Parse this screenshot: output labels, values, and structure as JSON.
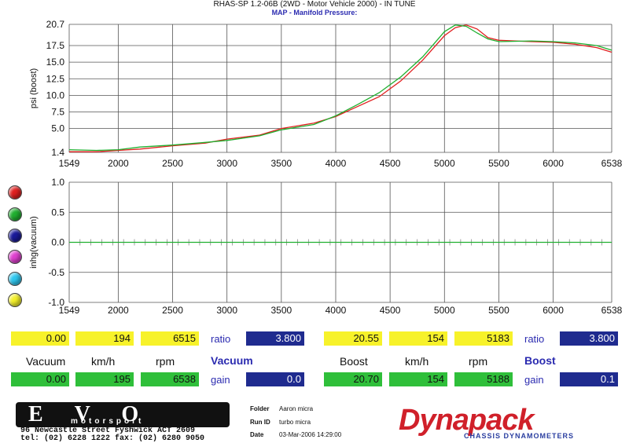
{
  "header": {
    "title": "RHAS-SP 1.2-06B  (2WD - Motor Vehicle 2000) - IN TUNE",
    "subtitle": "MAP - Manifold Pressure:"
  },
  "colors": {
    "run1": "#e02020",
    "run2": "#20b030",
    "indicator_dots": [
      "#e02020",
      "#20b030",
      "#1a1a9a",
      "#e040d0",
      "#30c8f0",
      "#f4f02a"
    ]
  },
  "chart_data": [
    {
      "type": "line",
      "ylabel": "psi (boost)",
      "xlim": [
        1549,
        6538
      ],
      "ylim": [
        1.4,
        20.7
      ],
      "x_ticks": [
        "1549",
        "2000",
        "2500",
        "3000",
        "3500",
        "4000",
        "4500",
        "5000",
        "5500",
        "6000",
        "6538"
      ],
      "y_ticks": [
        "20.7",
        "17.5",
        "15.0",
        "12.5",
        "10.0",
        "7.5",
        "5.0",
        "1.4"
      ],
      "grid": true,
      "series": [
        {
          "color": "#e02020",
          "x": [
            1549,
            1800,
            2000,
            2200,
            2500,
            2800,
            3000,
            3300,
            3500,
            3800,
            4000,
            4200,
            4400,
            4600,
            4800,
            5000,
            5100,
            5200,
            5300,
            5400,
            5500,
            5800,
            6000,
            6200,
            6400,
            6538
          ],
          "y": [
            1.5,
            1.5,
            1.7,
            1.9,
            2.4,
            2.8,
            3.4,
            4.0,
            5.0,
            5.8,
            6.8,
            8.3,
            9.8,
            12.2,
            15.3,
            19.0,
            20.2,
            20.6,
            20.0,
            18.7,
            18.3,
            18.1,
            18.0,
            17.7,
            17.2,
            16.5
          ]
        },
        {
          "color": "#20b030",
          "x": [
            1549,
            1800,
            2000,
            2200,
            2500,
            2800,
            3000,
            3300,
            3500,
            3800,
            4000,
            4200,
            4400,
            4600,
            4800,
            5000,
            5100,
            5200,
            5300,
            5400,
            5500,
            5800,
            6000,
            6200,
            6400,
            6538
          ],
          "y": [
            1.8,
            1.7,
            1.8,
            2.2,
            2.5,
            2.9,
            3.2,
            3.9,
            4.8,
            5.6,
            6.9,
            8.6,
            10.4,
            12.8,
            15.8,
            19.6,
            20.6,
            20.4,
            19.4,
            18.5,
            18.1,
            18.2,
            18.1,
            17.9,
            17.5,
            16.8
          ]
        }
      ]
    },
    {
      "type": "line",
      "ylabel": "inhg(vacuum)",
      "xlim": [
        1549,
        6538
      ],
      "ylim": [
        -1.0,
        1.0
      ],
      "x_ticks": [
        "1549",
        "2000",
        "2500",
        "3000",
        "3500",
        "4000",
        "4500",
        "5000",
        "5500",
        "6000",
        "6538"
      ],
      "y_ticks": [
        "1.0",
        "0.5",
        "0.0",
        "-0.5",
        "-1.0"
      ],
      "grid": true,
      "series": [
        {
          "color": "#20b030",
          "x": [
            1549,
            6538
          ],
          "y": [
            0.0,
            0.0
          ]
        }
      ]
    }
  ],
  "readouts": {
    "vacuum_group": {
      "heading": "Vacuum",
      "top_values": [
        "0.00",
        "194",
        "6515"
      ],
      "labels": [
        "Vacuum",
        "km/h",
        "rpm"
      ],
      "bottom_values": [
        "0.00",
        "195",
        "6538"
      ],
      "ratio_label": "ratio",
      "ratio_value": "3.800",
      "gain_label": "gain",
      "gain_value": "0.0"
    },
    "boost_group": {
      "heading": "Boost",
      "top_values": [
        "20.55",
        "154",
        "5183"
      ],
      "labels": [
        "Boost",
        "km/h",
        "rpm"
      ],
      "bottom_values": [
        "20.70",
        "154",
        "5188"
      ],
      "ratio_label": "ratio",
      "ratio_value": "3.800",
      "gain_label": "gain",
      "gain_value": "0.1"
    }
  },
  "footer": {
    "logo_text": "EVO",
    "logo_sub": "motorsport",
    "address": "96 Newcastle Street  Fyshwick  ACT 2609",
    "phones": "tel: (02) 6228 1222    fax: (02) 6280 9050",
    "folder_label": "Folder",
    "folder_value": "Aaron micra",
    "runid_label": "Run ID",
    "runid_value": "turbo micra",
    "date_label": "Date",
    "date_value": "03-Mar-2006  14:29:00",
    "brand": "Dynapack",
    "brand_sub": "CHASSIS DYNAMOMETERS"
  }
}
